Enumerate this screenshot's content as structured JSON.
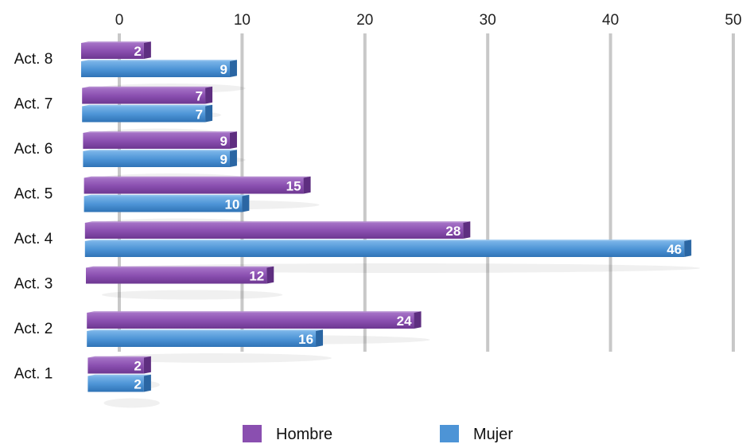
{
  "chart_data": {
    "type": "bar",
    "orientation": "horizontal",
    "categories": [
      "Act. 1",
      "Act. 2",
      "Act. 3",
      "Act. 4",
      "Act. 5",
      "Act. 6",
      "Act. 7",
      "Act. 8"
    ],
    "series": [
      {
        "name": "Hombre",
        "values": [
          2,
          24,
          12,
          28,
          15,
          9,
          7,
          2
        ],
        "color": "#8a4fb0"
      },
      {
        "name": "Mujer",
        "values": [
          2,
          16,
          null,
          46,
          10,
          9,
          7,
          9
        ],
        "color": "#4d94d6"
      }
    ],
    "xlim": [
      0,
      50
    ],
    "xticks": [
      0,
      10,
      20,
      30,
      40,
      50
    ],
    "grid": true,
    "legend_position": "bottom"
  }
}
